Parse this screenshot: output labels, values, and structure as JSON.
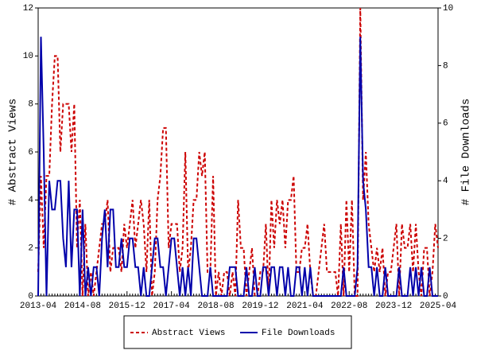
{
  "chart_data": {
    "type": "line",
    "y_label": "# Abstract Views",
    "y2_label": "# File Downloads",
    "categories": [
      "2013-04",
      null,
      null,
      null,
      null,
      null,
      null,
      null,
      null,
      null,
      null,
      null,
      null,
      null,
      null,
      null,
      "2014-08",
      null,
      null,
      null,
      null,
      null,
      null,
      null,
      null,
      null,
      null,
      null,
      null,
      null,
      null,
      null,
      "2015-12",
      null,
      null,
      null,
      null,
      null,
      null,
      null,
      null,
      null,
      null,
      null,
      null,
      null,
      null,
      null,
      "2017-04",
      null,
      null,
      null,
      null,
      null,
      null,
      null,
      null,
      null,
      null,
      null,
      null,
      null,
      null,
      null,
      "2018-08",
      null,
      null,
      null,
      null,
      null,
      null,
      null,
      null,
      null,
      null,
      null,
      null,
      null,
      null,
      null,
      "2019-12",
      null,
      null,
      null,
      null,
      null,
      null,
      null,
      null,
      null,
      null,
      null,
      null,
      null,
      null,
      null,
      "2021-04",
      null,
      null,
      null,
      null,
      null,
      null,
      null,
      null,
      null,
      null,
      null,
      null,
      null,
      null,
      null,
      "2022-08",
      null,
      null,
      null,
      null,
      null,
      null,
      null,
      null,
      null,
      null,
      null,
      null,
      null,
      null,
      null,
      "2023-12",
      null,
      null,
      null,
      null,
      null,
      null,
      null,
      null,
      null,
      null,
      null,
      null,
      null,
      null,
      null,
      "2025-04"
    ],
    "series": [
      {
        "name": "Abstract Views",
        "color": "#cc0000",
        "dash": true,
        "values": [
          1,
          5,
          2,
          5,
          5,
          8,
          10,
          10,
          6,
          8,
          8,
          8,
          6,
          8,
          2,
          4,
          0,
          3,
          0,
          1,
          0,
          1,
          2,
          3,
          3,
          4,
          1,
          2,
          2,
          2,
          1,
          3,
          2,
          3,
          4,
          2,
          3,
          4,
          3,
          1,
          4,
          0,
          1,
          4,
          5,
          7,
          7,
          2,
          3,
          3,
          3,
          1,
          2,
          6,
          1,
          2,
          4,
          4,
          6,
          5,
          6,
          1,
          1,
          5,
          0,
          1,
          0,
          1,
          1,
          0,
          1,
          0,
          4,
          2,
          2,
          0,
          1,
          2,
          0,
          0,
          1,
          1,
          3,
          0,
          4,
          2,
          4,
          3,
          4,
          2,
          4,
          4,
          5,
          1,
          1,
          2,
          2,
          3,
          1,
          0,
          0,
          1,
          2,
          3,
          1,
          1,
          1,
          1,
          0,
          3,
          0,
          4,
          1,
          4,
          0,
          0,
          12,
          4,
          6,
          3,
          2,
          1,
          2,
          1,
          2,
          0,
          1,
          1,
          2,
          3,
          0,
          3,
          2,
          2,
          3,
          1,
          3,
          1,
          0,
          2,
          2,
          0,
          1,
          3,
          2
        ]
      },
      {
        "name": "File Downloads",
        "color": "#0000aa",
        "axis": "y2",
        "values": [
          0,
          9,
          5,
          0,
          4,
          3,
          3,
          4,
          4,
          2,
          1,
          4,
          1,
          3,
          3,
          0,
          3,
          0,
          1,
          0,
          1,
          1,
          0,
          2,
          3,
          1,
          3,
          3,
          1,
          1,
          2,
          1,
          1,
          2,
          2,
          1,
          1,
          0,
          1,
          0,
          0,
          1,
          2,
          2,
          1,
          1,
          0,
          1,
          2,
          2,
          1,
          0,
          1,
          0,
          1,
          0,
          2,
          2,
          1,
          0,
          0,
          0,
          1,
          0,
          0,
          0,
          0,
          0,
          0,
          1,
          1,
          1,
          0,
          0,
          0,
          1,
          0,
          0,
          1,
          0,
          0,
          1,
          1,
          0,
          1,
          1,
          0,
          1,
          1,
          0,
          1,
          0,
          0,
          1,
          1,
          0,
          1,
          0,
          1,
          0,
          0,
          0,
          0,
          0,
          0,
          0,
          0,
          0,
          0,
          0,
          1,
          0,
          0,
          0,
          0,
          1,
          9,
          4,
          3,
          1,
          1,
          0,
          1,
          0,
          0,
          1,
          0,
          0,
          0,
          0,
          1,
          0,
          0,
          0,
          1,
          0,
          1,
          0,
          1,
          0,
          0,
          1,
          0,
          0,
          0
        ]
      }
    ],
    "ylim": [
      0,
      12
    ],
    "yticks": [
      0,
      2,
      4,
      6,
      8,
      10,
      12
    ],
    "y2lim": [
      0,
      10
    ],
    "y2ticks": [
      0,
      2,
      4,
      6,
      8,
      10
    ],
    "legend": "bottom"
  }
}
